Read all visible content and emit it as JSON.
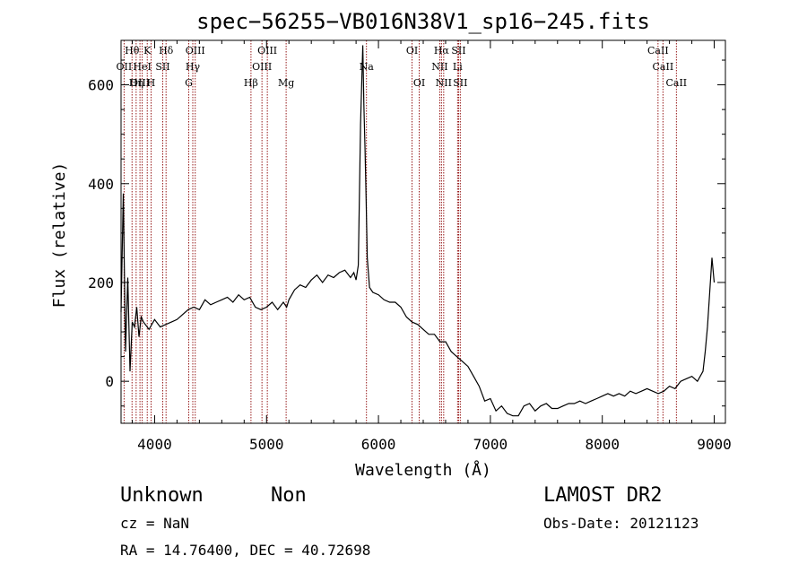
{
  "chart_data": {
    "type": "line",
    "title": "spec−56255−VB016N38V1_sp16−245.fits",
    "xlabel": "Wavelength (Å)",
    "ylabel": "Flux (relative)",
    "xlim": [
      3700,
      9100
    ],
    "ylim": [
      -85,
      690
    ],
    "x_ticks": [
      4000,
      5000,
      6000,
      7000,
      8000,
      9000
    ],
    "y_ticks": [
      0,
      200,
      400,
      600
    ],
    "grid": false,
    "series": [
      {
        "x": [
          3700,
          3720,
          3740,
          3760,
          3780,
          3800,
          3820,
          3840,
          3860,
          3880,
          3900,
          3950,
          4000,
          4050,
          4100,
          4150,
          4200,
          4250,
          4300,
          4350,
          4400,
          4450,
          4500,
          4550,
          4600,
          4650,
          4700,
          4750,
          4800,
          4850,
          4900,
          4950,
          5000,
          5050,
          5100,
          5150,
          5180,
          5200,
          5250,
          5300,
          5350,
          5400,
          5450,
          5500,
          5550,
          5600,
          5650,
          5700,
          5750,
          5780,
          5800,
          5820,
          5840,
          5860,
          5870,
          5880,
          5890,
          5900,
          5920,
          5950,
          6000,
          6050,
          6100,
          6150,
          6200,
          6250,
          6300,
          6350,
          6400,
          6450,
          6500,
          6550,
          6600,
          6650,
          6700,
          6750,
          6800,
          6850,
          6900,
          6950,
          7000,
          7050,
          7100,
          7150,
          7200,
          7250,
          7300,
          7350,
          7400,
          7450,
          7500,
          7550,
          7600,
          7650,
          7700,
          7750,
          7800,
          7850,
          7900,
          7950,
          8000,
          8050,
          8100,
          8150,
          8200,
          8250,
          8300,
          8350,
          8400,
          8450,
          8500,
          8550,
          8600,
          8650,
          8700,
          8750,
          8800,
          8850,
          8900,
          8920,
          8940,
          8960,
          8980,
          9000
        ],
        "y": [
          140,
          380,
          60,
          210,
          20,
          120,
          110,
          150,
          90,
          130,
          120,
          105,
          125,
          110,
          115,
          120,
          125,
          135,
          145,
          150,
          145,
          165,
          155,
          160,
          165,
          170,
          160,
          175,
          165,
          170,
          150,
          145,
          150,
          160,
          145,
          160,
          150,
          165,
          185,
          195,
          190,
          205,
          215,
          200,
          215,
          210,
          220,
          225,
          210,
          220,
          205,
          235,
          520,
          680,
          560,
          470,
          370,
          250,
          190,
          180,
          175,
          165,
          160,
          160,
          150,
          130,
          120,
          115,
          105,
          95,
          95,
          80,
          80,
          60,
          50,
          40,
          30,
          10,
          -10,
          -40,
          -35,
          -60,
          -50,
          -65,
          -70,
          -70,
          -50,
          -45,
          -60,
          -50,
          -45,
          -55,
          -55,
          -50,
          -45,
          -45,
          -40,
          -45,
          -40,
          -35,
          -30,
          -25,
          -30,
          -25,
          -30,
          -20,
          -25,
          -20,
          -15,
          -20,
          -25,
          -20,
          -10,
          -15,
          0,
          5,
          10,
          0,
          20,
          60,
          110,
          180,
          250,
          200
        ]
      }
    ],
    "lines": [
      {
        "label": "Hθ",
        "wavelength": 3798,
        "row": 0
      },
      {
        "label": "K",
        "wavelength": 3934,
        "row": 0
      },
      {
        "label": "Hδ",
        "wavelength": 4102,
        "row": 0
      },
      {
        "label": "OIII",
        "wavelength": 4363,
        "row": 0
      },
      {
        "label": "OIII",
        "wavelength": 5007,
        "row": 0
      },
      {
        "label": "OI",
        "wavelength": 6300,
        "row": 0
      },
      {
        "label": "Hα",
        "wavelength": 6563,
        "row": 0
      },
      {
        "label": "SII",
        "wavelength": 6716,
        "row": 0
      },
      {
        "label": "CaII",
        "wavelength": 8498,
        "row": 0
      },
      {
        "label": "OII",
        "wavelength": 3727,
        "row": 1
      },
      {
        "label": "HeI",
        "wavelength": 3889,
        "row": 1
      },
      {
        "label": "SII",
        "wavelength": 4072,
        "row": 1
      },
      {
        "label": "Hγ",
        "wavelength": 4341,
        "row": 1
      },
      {
        "label": "OIII",
        "wavelength": 4959,
        "row": 1
      },
      {
        "label": "Na",
        "wavelength": 5893,
        "row": 1
      },
      {
        "label": "NII",
        "wavelength": 6548,
        "row": 1
      },
      {
        "label": "Li",
        "wavelength": 6707,
        "row": 1
      },
      {
        "label": "CaII",
        "wavelength": 8542,
        "row": 1
      },
      {
        "label": "OIII",
        "wavelength": 3869,
        "row": 2
      },
      {
        "label": "Hη",
        "wavelength": 3835,
        "row": 2
      },
      {
        "label": "H",
        "wavelength": 3968,
        "row": 2
      },
      {
        "label": "G",
        "wavelength": 4305,
        "row": 2
      },
      {
        "label": "Hβ",
        "wavelength": 4861,
        "row": 2
      },
      {
        "label": "Mg",
        "wavelength": 5175,
        "row": 2
      },
      {
        "label": "OI",
        "wavelength": 6364,
        "row": 2
      },
      {
        "label": "NII",
        "wavelength": 6583,
        "row": 2
      },
      {
        "label": "SII",
        "wavelength": 6731,
        "row": 2
      },
      {
        "label": "CaII",
        "wavelength": 8662,
        "row": 2
      }
    ],
    "colors": {
      "spectrum": "#000000",
      "line_markers": "#8b0000"
    }
  },
  "info": {
    "class": "Unknown",
    "subclass": "Non",
    "survey": "LAMOST DR2",
    "cz": "cz = NaN",
    "obs_date": "Obs-Date: 20121123",
    "coords": "RA =  14.76400, DEC =  40.72698"
  }
}
